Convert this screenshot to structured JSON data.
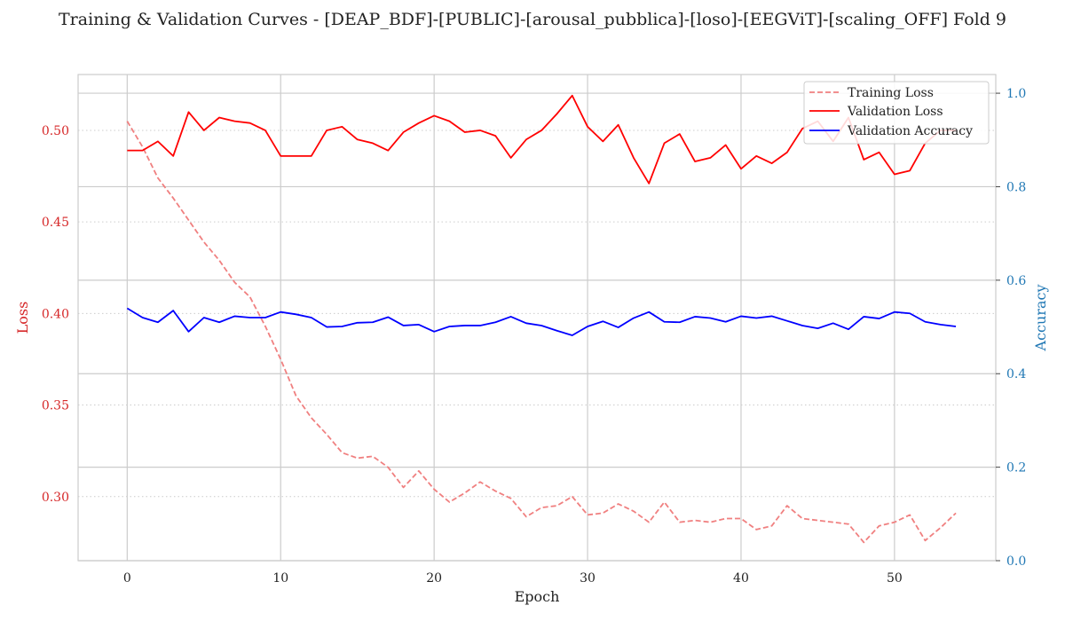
{
  "chart_data": {
    "type": "line",
    "title": "Training & Validation Curves - [DEAP_BDF]-[PUBLIC]-[arousal_pubblica]-[loso]-[EEGViT]-[scaling_OFF] Fold 9",
    "xlabel": "Epoch",
    "ylabel_left": "Loss",
    "ylabel_right": "Accuracy",
    "xlim": [
      -3.2,
      56.6
    ],
    "ylim_left": [
      0.265,
      0.5305
    ],
    "ylim_right": [
      0.0,
      1.04
    ],
    "x_ticks": [
      0,
      10,
      20,
      30,
      40,
      50
    ],
    "y_ticks_left": [
      0.3,
      0.35,
      0.4,
      0.45,
      0.5
    ],
    "y_ticks_right": [
      0.0,
      0.2,
      0.4,
      0.6,
      0.8,
      1.0
    ],
    "grid": true,
    "legend_position": "top-right",
    "colors": {
      "training_loss": "#f08080",
      "validation_loss": "#ff0000",
      "validation_accuracy": "#0000ff",
      "left_axis": "#d62728",
      "right_axis": "#1f77b4",
      "grid": "#cccccc"
    },
    "series": [
      {
        "name": "Training Loss",
        "axis": "left",
        "style": "dashed",
        "x": [
          0,
          1,
          2,
          3,
          4,
          5,
          6,
          7,
          8,
          9,
          10,
          11,
          12,
          13,
          14,
          15,
          16,
          17,
          18,
          19,
          20,
          21,
          22,
          23,
          24,
          25,
          26,
          27,
          28,
          29,
          30,
          31,
          32,
          33,
          34,
          35,
          36,
          37,
          38,
          39,
          40,
          41,
          42,
          43,
          44,
          45,
          46,
          47,
          48,
          49,
          50,
          51,
          52,
          53,
          54
        ],
        "values": [
          0.505,
          0.491,
          0.474,
          0.463,
          0.451,
          0.439,
          0.429,
          0.417,
          0.409,
          0.393,
          0.375,
          0.355,
          0.343,
          0.334,
          0.324,
          0.321,
          0.322,
          0.316,
          0.305,
          0.314,
          0.304,
          0.297,
          0.302,
          0.308,
          0.303,
          0.299,
          0.289,
          0.294,
          0.295,
          0.3,
          0.29,
          0.291,
          0.296,
          0.292,
          0.286,
          0.297,
          0.286,
          0.287,
          0.286,
          0.288,
          0.288,
          0.282,
          0.284,
          0.295,
          0.288,
          0.287,
          0.286,
          0.285,
          0.275,
          0.284,
          0.286,
          0.29,
          0.276,
          0.283,
          0.291
        ]
      },
      {
        "name": "Validation Loss",
        "axis": "left",
        "style": "solid",
        "x": [
          0,
          1,
          2,
          3,
          4,
          5,
          6,
          7,
          8,
          9,
          10,
          11,
          12,
          13,
          14,
          15,
          16,
          17,
          18,
          19,
          20,
          21,
          22,
          23,
          24,
          25,
          26,
          27,
          28,
          29,
          30,
          31,
          32,
          33,
          34,
          35,
          36,
          37,
          38,
          39,
          40,
          41,
          42,
          43,
          44,
          45,
          46,
          47,
          48,
          49,
          50,
          51,
          52,
          53,
          54
        ],
        "values": [
          0.489,
          0.489,
          0.494,
          0.486,
          0.51,
          0.5,
          0.507,
          0.505,
          0.504,
          0.5,
          0.486,
          0.486,
          0.486,
          0.5,
          0.502,
          0.495,
          0.493,
          0.489,
          0.499,
          0.504,
          0.508,
          0.505,
          0.499,
          0.5,
          0.497,
          0.485,
          0.495,
          0.5,
          0.509,
          0.519,
          0.502,
          0.494,
          0.503,
          0.485,
          0.471,
          0.493,
          0.498,
          0.483,
          0.485,
          0.492,
          0.479,
          0.486,
          0.482,
          0.488,
          0.501,
          0.505,
          0.494,
          0.507,
          0.484,
          0.488,
          0.476,
          0.478,
          0.493,
          0.5,
          0.5
        ]
      },
      {
        "name": "Validation Accuracy",
        "axis": "right",
        "style": "solid",
        "x": [
          0,
          1,
          2,
          3,
          4,
          5,
          6,
          7,
          8,
          9,
          10,
          11,
          12,
          13,
          14,
          15,
          16,
          17,
          18,
          19,
          20,
          21,
          22,
          23,
          24,
          25,
          26,
          27,
          28,
          29,
          30,
          31,
          32,
          33,
          34,
          35,
          36,
          37,
          38,
          39,
          40,
          41,
          42,
          43,
          44,
          45,
          46,
          47,
          48,
          49,
          50,
          51,
          52,
          53,
          54
        ],
        "values": [
          0.54,
          0.52,
          0.51,
          0.535,
          0.49,
          0.52,
          0.51,
          0.523,
          0.52,
          0.52,
          0.532,
          0.527,
          0.52,
          0.5,
          0.501,
          0.509,
          0.51,
          0.521,
          0.503,
          0.505,
          0.49,
          0.501,
          0.503,
          0.503,
          0.51,
          0.522,
          0.508,
          0.503,
          0.492,
          0.482,
          0.501,
          0.512,
          0.499,
          0.519,
          0.532,
          0.511,
          0.51,
          0.522,
          0.519,
          0.511,
          0.523,
          0.519,
          0.523,
          0.513,
          0.503,
          0.497,
          0.508,
          0.495,
          0.522,
          0.518,
          0.532,
          0.529,
          0.511,
          0.505,
          0.501
        ]
      }
    ]
  }
}
